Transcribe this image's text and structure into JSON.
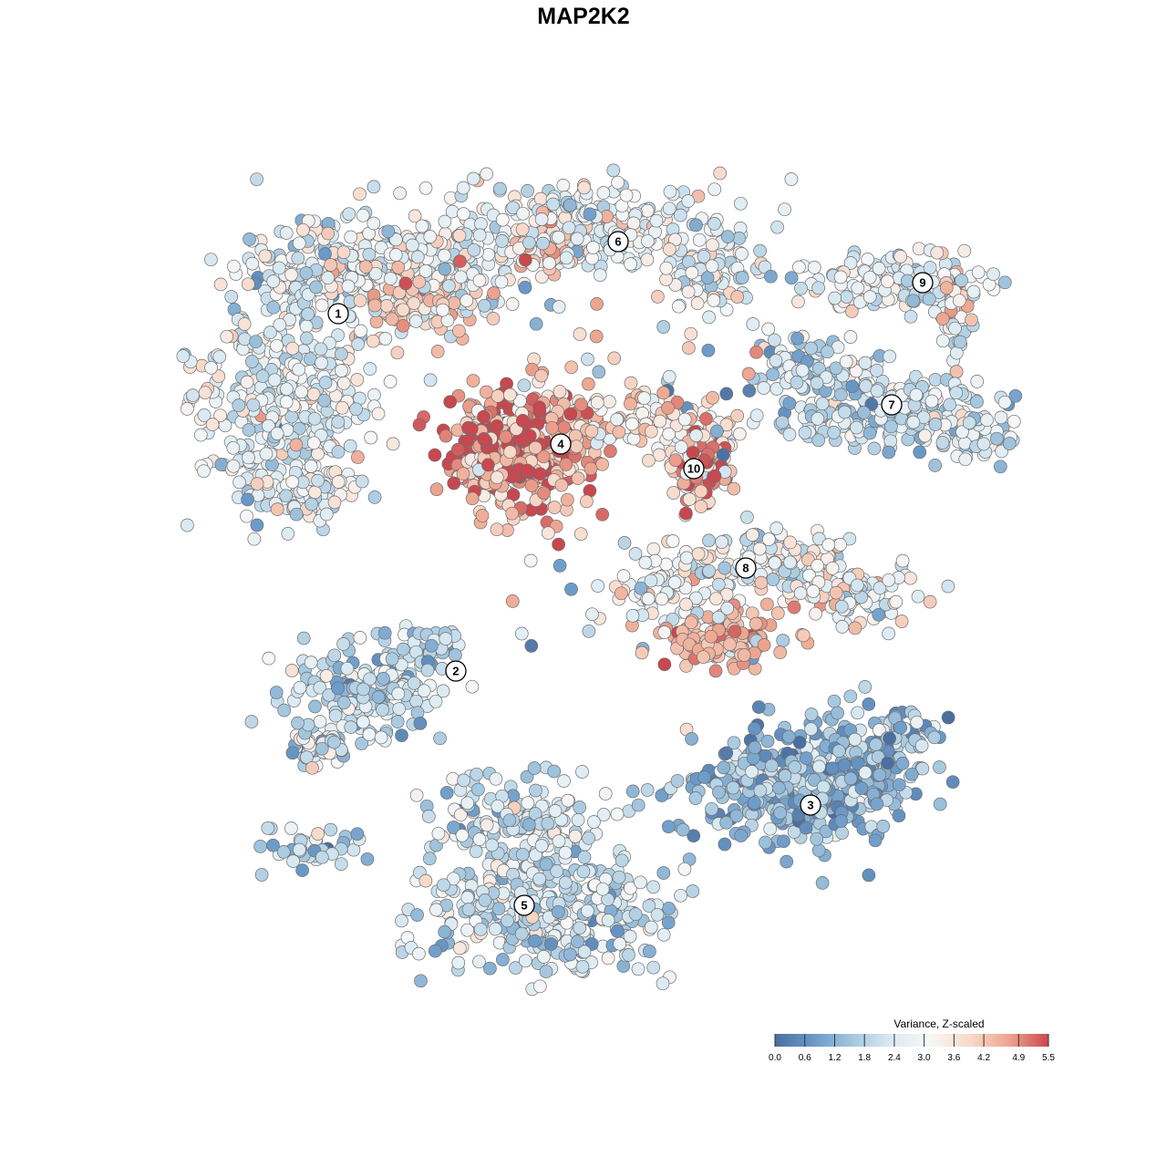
{
  "chart_data": {
    "type": "scatter",
    "title": "MAP2K2",
    "xlabel": "",
    "ylabel": "",
    "grid": false,
    "legend": {
      "title": "Variance, Z-scaled",
      "placement": "bottom-right",
      "ticks": [
        "0.0",
        "0.6",
        "1.2",
        "1.8",
        "2.4",
        "3.0",
        "3.6",
        "4.2",
        "4.9",
        "5.5"
      ],
      "range": [
        0,
        5.5
      ]
    },
    "colors": [
      "#4a6fa0",
      "#6a9ac9",
      "#a5c8df",
      "#dcebf3",
      "#f7f7f7",
      "#f8d9c9",
      "#eda48e",
      "#c9474f"
    ],
    "clusters": [
      {
        "label": "1",
        "value": 2.6
      },
      {
        "label": "2",
        "value": 1.9
      },
      {
        "label": "3",
        "value": 1.3
      },
      {
        "label": "4",
        "value": 4.4
      },
      {
        "label": "5",
        "value": 2.1
      },
      {
        "label": "6",
        "value": 2.8
      },
      {
        "label": "7",
        "value": 2.2
      },
      {
        "label": "8",
        "value": 2.9
      },
      {
        "label": "9",
        "value": 2.6
      },
      {
        "label": "10",
        "value": 3.8
      }
    ]
  }
}
